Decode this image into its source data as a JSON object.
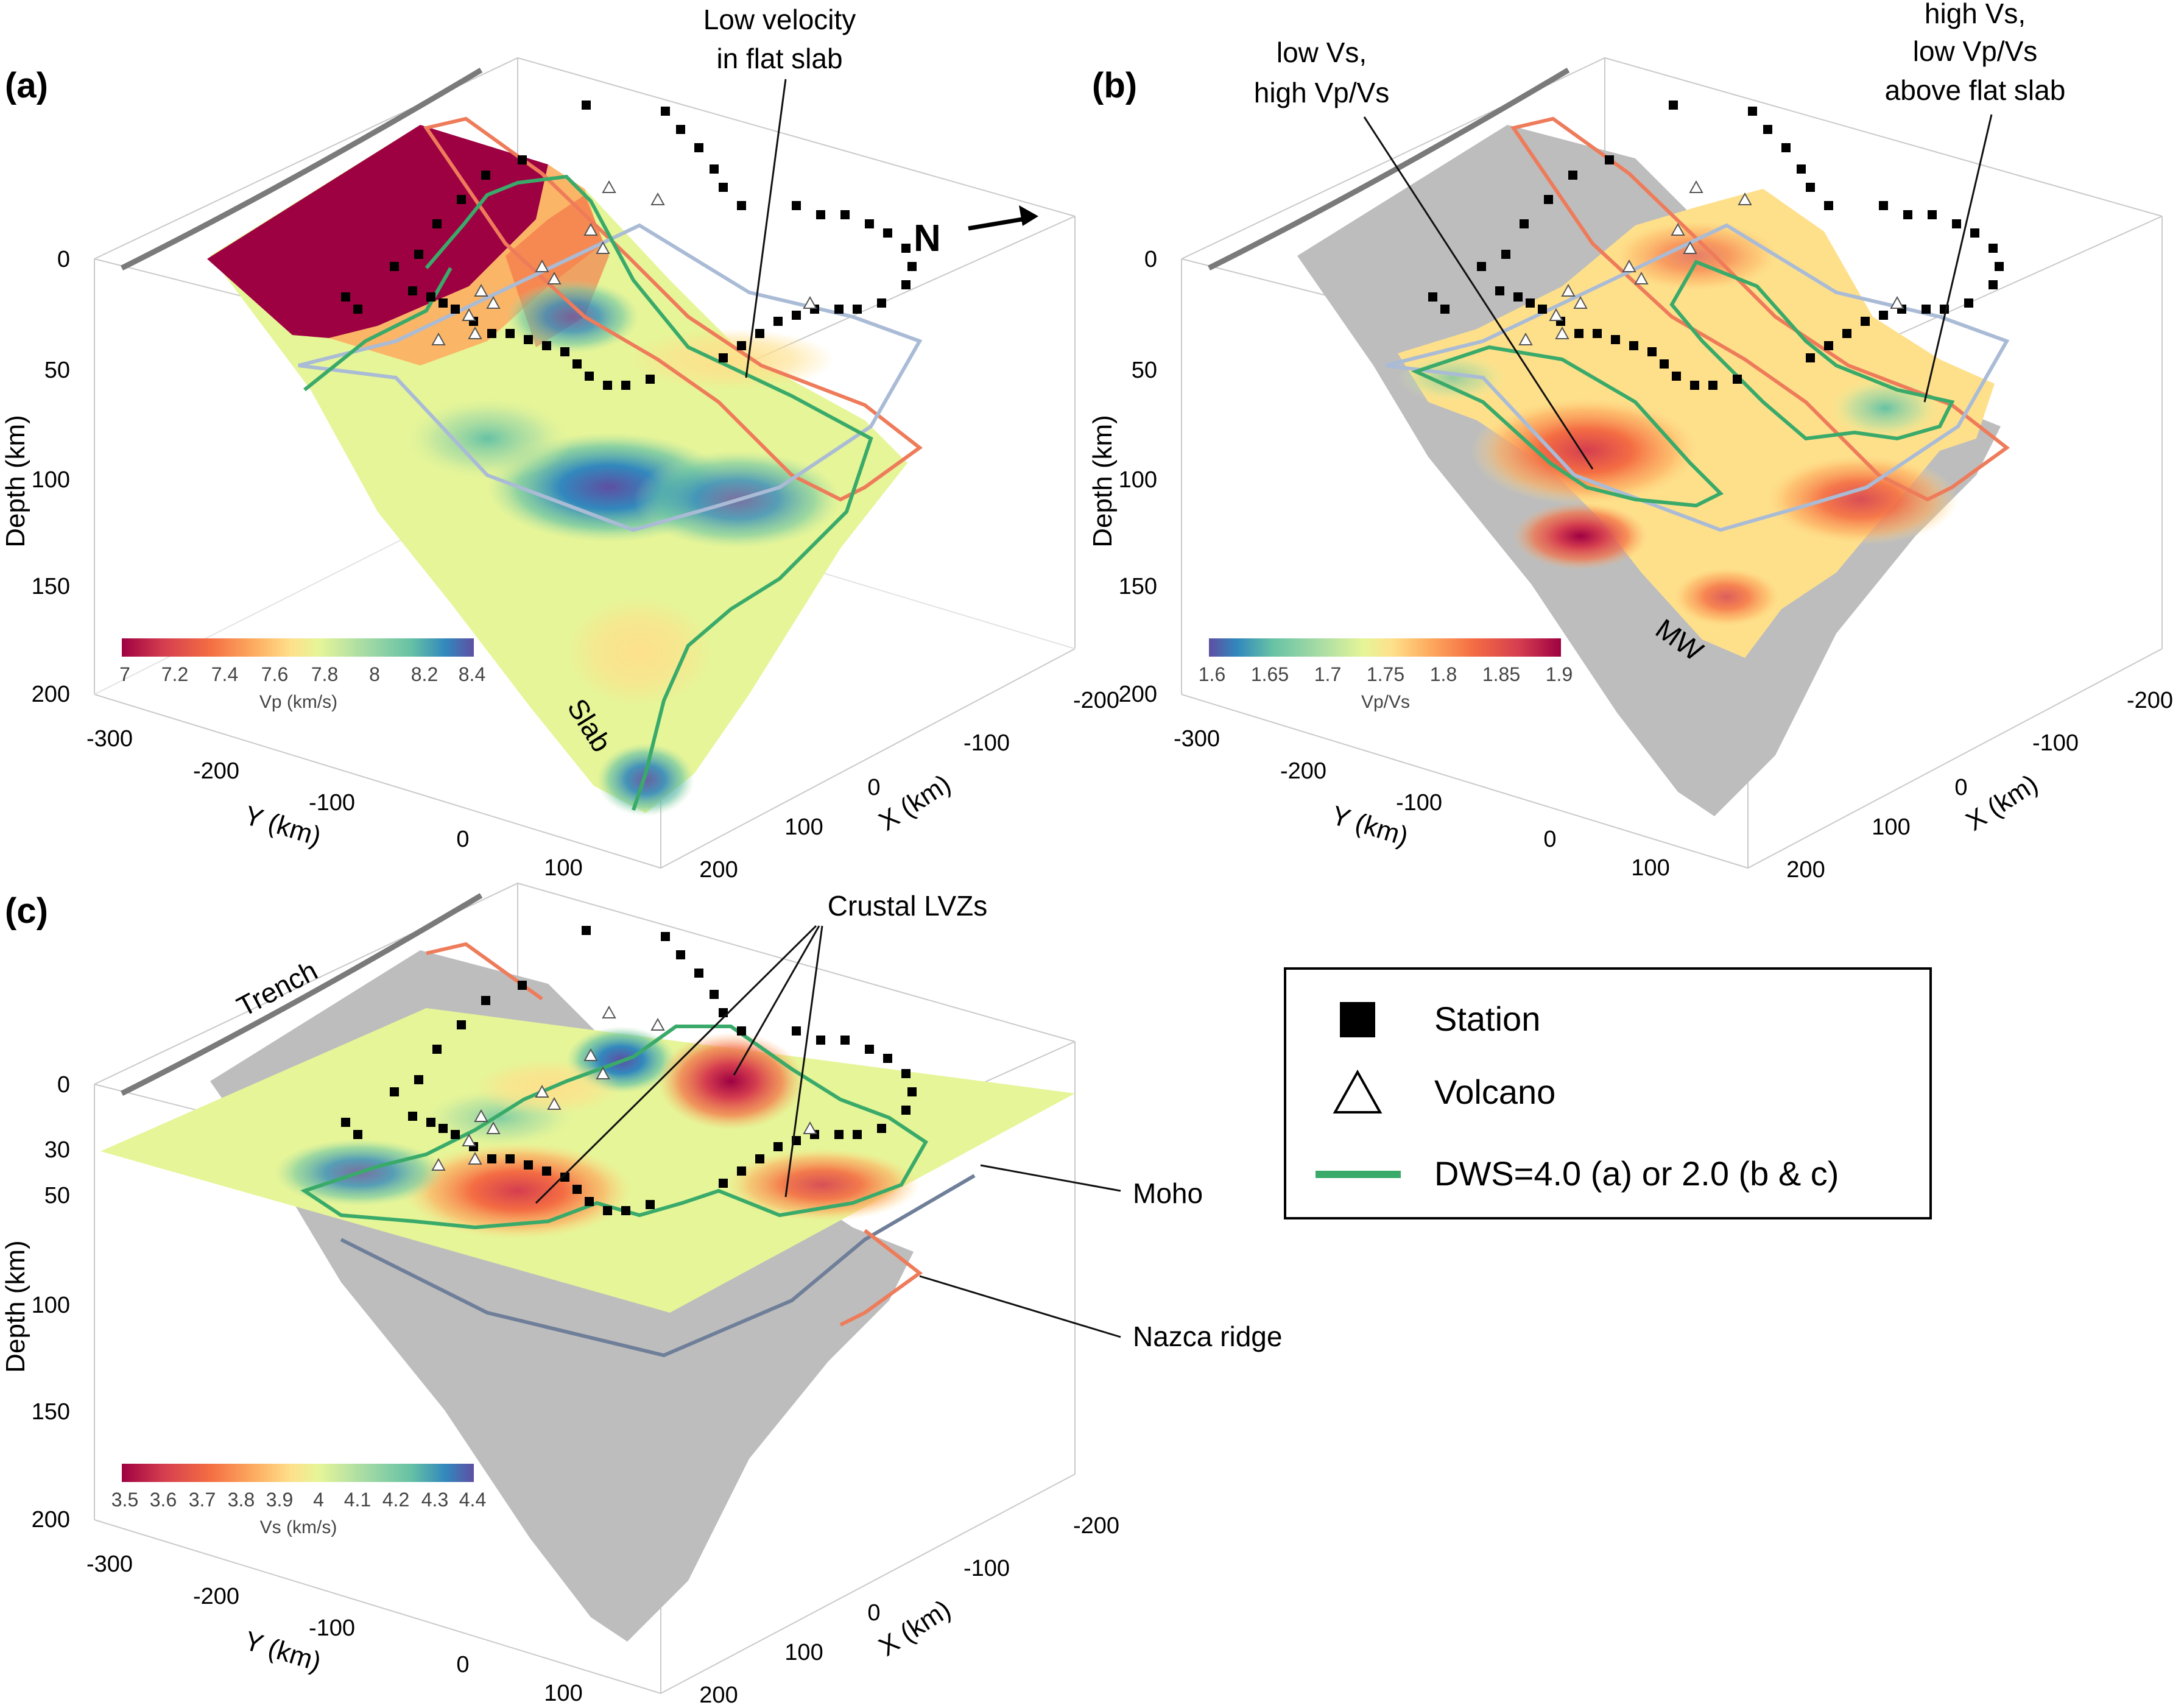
{
  "panels": [
    {
      "id": "a",
      "label": "(a)",
      "depth_label": "Depth (km)",
      "depth_ticks": [
        "0",
        "50",
        "100",
        "150",
        "200"
      ],
      "x_label": "X (km)",
      "x_ticks": [
        "-200",
        "-100",
        "0",
        "100",
        "200"
      ],
      "y_label": "Y (km)",
      "y_ticks": [
        "-300",
        "-200",
        "-100",
        "0",
        "100"
      ],
      "colorbar": {
        "title": "Vp (km/s)",
        "ticks": [
          "7",
          "7.2",
          "7.4",
          "7.6",
          "7.8",
          "8",
          "8.2",
          "8.4"
        ],
        "range": [
          7.0,
          8.4
        ],
        "colormap": "Spectral (red-low to blue-high)"
      },
      "annotations": [
        "Low velocity",
        "in flat slab",
        "Slab",
        "N"
      ]
    },
    {
      "id": "b",
      "label": "(b)",
      "depth_label": "Depth (km)",
      "depth_ticks": [
        "0",
        "50",
        "100",
        "150",
        "200"
      ],
      "x_label": "X (km)",
      "x_ticks": [
        "-200",
        "-100",
        "0",
        "100",
        "200"
      ],
      "y_label": "Y (km)",
      "y_ticks": [
        "-300",
        "-200",
        "-100",
        "0",
        "100"
      ],
      "colorbar": {
        "title": "Vp/Vs",
        "ticks": [
          "1.6",
          "1.65",
          "1.7",
          "1.75",
          "1.8",
          "1.85",
          "1.9"
        ],
        "range": [
          1.6,
          1.9
        ],
        "colormap": "Spectral reversed (blue-low to red-high)"
      },
      "annotations": [
        "low Vs,",
        "high Vp/Vs",
        "high Vs,",
        "low Vp/Vs",
        "above flat slab",
        "MW"
      ]
    },
    {
      "id": "c",
      "label": "(c)",
      "depth_label": "Depth (km)",
      "depth_ticks": [
        "0",
        "30",
        "50",
        "100",
        "150",
        "200"
      ],
      "x_label": "X (km)",
      "x_ticks": [
        "-200",
        "-100",
        "0",
        "100",
        "200"
      ],
      "y_label": "Y (km)",
      "y_ticks": [
        "-300",
        "-200",
        "-100",
        "0",
        "100"
      ],
      "colorbar": {
        "title": "Vs (km/s)",
        "ticks": [
          "3.5",
          "3.6",
          "3.7",
          "3.8",
          "3.9",
          "4",
          "4.1",
          "4.2",
          "4.3",
          "4.4"
        ],
        "range": [
          3.5,
          4.4
        ],
        "colormap": "Spectral (red-low to blue-high)"
      },
      "annotations": [
        "Trench",
        "Crustal LVZs",
        "Moho",
        "Nazca ridge"
      ]
    }
  ],
  "legend": {
    "items": [
      {
        "symbol": "filled-square-icon",
        "label": "Station"
      },
      {
        "symbol": "open-triangle-icon",
        "label": "Volcano"
      },
      {
        "symbol": "green-line-icon",
        "label": "DWS=4.0 (a) or 2.0 (b & c)"
      }
    ]
  },
  "colors": {
    "station": "#000000",
    "dws_contour": "#3aaa6a",
    "nazca_ridge_outline": "#ee7b5a",
    "flat_slab_outline": "#aabbd6",
    "slab_shadow": "#bdbdbd",
    "box_edge": "#c7c7c7"
  }
}
